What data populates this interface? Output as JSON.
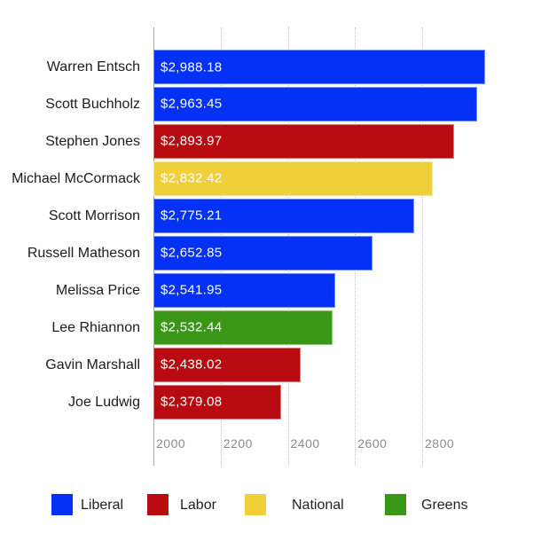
{
  "chart_data": {
    "type": "bar",
    "orientation": "horizontal",
    "title": "",
    "xlabel": "",
    "ylabel": "",
    "xlim": [
      2000,
      3000
    ],
    "x_ticks": [
      "2000",
      "2200",
      "2400",
      "2600",
      "2800"
    ],
    "x_tick_values": [
      2000,
      2200,
      2400,
      2600,
      2800
    ],
    "grid": "vertical-dotted",
    "legend_position": "bottom",
    "categories": [
      "Warren Entsch",
      "Scott Buchholz",
      "Stephen Jones",
      "Michael McCormack",
      "Scott Morrison",
      "Russell Matheson",
      "Melissa Price",
      "Lee Rhiannon",
      "Gavin Marshall",
      "Joe Ludwig"
    ],
    "values": [
      2988.18,
      2963.45,
      2893.97,
      2832.42,
      2775.21,
      2652.85,
      2541.95,
      2532.44,
      2438.02,
      2379.08
    ],
    "value_labels": [
      "$2,988.18",
      "$2,963.45",
      "$2,893.97",
      "$2,832.42",
      "$2,775.21",
      "$2,652.85",
      "$2,541.95",
      "$2,532.44",
      "$2,438.02",
      "$2,379.08"
    ],
    "series_by_row": [
      "Liberal",
      "Liberal",
      "Labor",
      "National",
      "Liberal",
      "Liberal",
      "Liberal",
      "Greens",
      "Labor",
      "Labor"
    ]
  },
  "legend": {
    "items": [
      {
        "label": "Liberal",
        "color": "#0331F5"
      },
      {
        "label": "Labor",
        "color": "#B80B11"
      },
      {
        "label": "National",
        "color": "#EFD03B"
      },
      {
        "label": "Greens",
        "color": "#399617"
      }
    ]
  },
  "colors": {
    "Liberal": "#0331F5",
    "Labor": "#B80B11",
    "National": "#EFD03B",
    "Greens": "#399617",
    "grid": "#c4c4c4",
    "axis": "#aaaaaa",
    "tick_text": "#8a8a8a",
    "category_text": "#1c1c1c",
    "bar_value_text": "#ffffff",
    "background": "#ffffff"
  }
}
